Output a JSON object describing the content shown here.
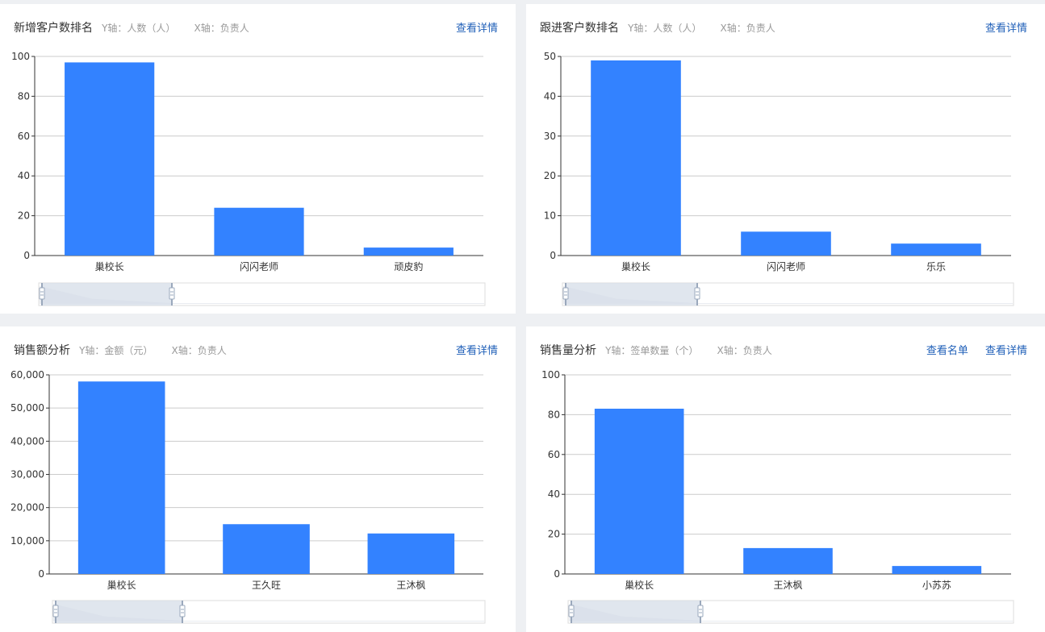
{
  "panels": [
    {
      "title": "新增客户数排名",
      "y_axis_note": "Y轴：人数（人）",
      "x_axis_note": "X轴：负责人",
      "actions": [
        "查看详情"
      ]
    },
    {
      "title": "跟进客户数排名",
      "y_axis_note": "Y轴：人数（人）",
      "x_axis_note": "X轴：负责人",
      "actions": [
        "查看详情"
      ]
    },
    {
      "title": "销售额分析",
      "y_axis_note": "Y轴：金额（元）",
      "x_axis_note": "X轴：负责人",
      "actions": [
        "查看详情"
      ]
    },
    {
      "title": "销售量分析",
      "y_axis_note": "Y轴：签单数量（个）",
      "x_axis_note": "X轴：负责人",
      "actions": [
        "查看名单",
        "查看详情"
      ]
    }
  ],
  "colors": {
    "bar": "#3382ff",
    "grid": "#cccccc",
    "axis": "#333333",
    "zoom_fill": "#d6dde8",
    "zoom_handle": "#9aa8bc",
    "zoom_border": "#dddddd"
  },
  "chart_data": [
    {
      "type": "bar",
      "categories": [
        "巢校长",
        "闪闪老师",
        "顽皮豹"
      ],
      "values": [
        97,
        24,
        4
      ],
      "ylim": [
        0,
        100
      ],
      "yticks": [
        0,
        20,
        40,
        60,
        80,
        100
      ],
      "ytick_labels": [
        "0",
        "20",
        "40",
        "60",
        "80",
        "100"
      ],
      "grid": true,
      "legend": "none",
      "zoom_slider": true
    },
    {
      "type": "bar",
      "categories": [
        "巢校长",
        "闪闪老师",
        "乐乐"
      ],
      "values": [
        49,
        6,
        3
      ],
      "ylim": [
        0,
        50
      ],
      "yticks": [
        0,
        10,
        20,
        30,
        40,
        50
      ],
      "ytick_labels": [
        "0",
        "10",
        "20",
        "30",
        "40",
        "50"
      ],
      "grid": true,
      "legend": "none",
      "zoom_slider": true
    },
    {
      "type": "bar",
      "categories": [
        "巢校长",
        "王久旺",
        "王沐枫"
      ],
      "values": [
        58000,
        15000,
        12200
      ],
      "ylim": [
        0,
        60000
      ],
      "yticks": [
        0,
        10000,
        20000,
        30000,
        40000,
        50000,
        60000
      ],
      "ytick_labels": [
        "0",
        "10,000",
        "20,000",
        "30,000",
        "40,000",
        "50,000",
        "60,000"
      ],
      "grid": true,
      "legend": "none",
      "zoom_slider": true
    },
    {
      "type": "bar",
      "categories": [
        "巢校长",
        "王沐枫",
        "小苏苏"
      ],
      "values": [
        83,
        13,
        4
      ],
      "ylim": [
        0,
        100
      ],
      "yticks": [
        0,
        20,
        40,
        60,
        80,
        100
      ],
      "ytick_labels": [
        "0",
        "20",
        "40",
        "60",
        "80",
        "100"
      ],
      "grid": true,
      "legend": "none",
      "zoom_slider": true
    }
  ]
}
